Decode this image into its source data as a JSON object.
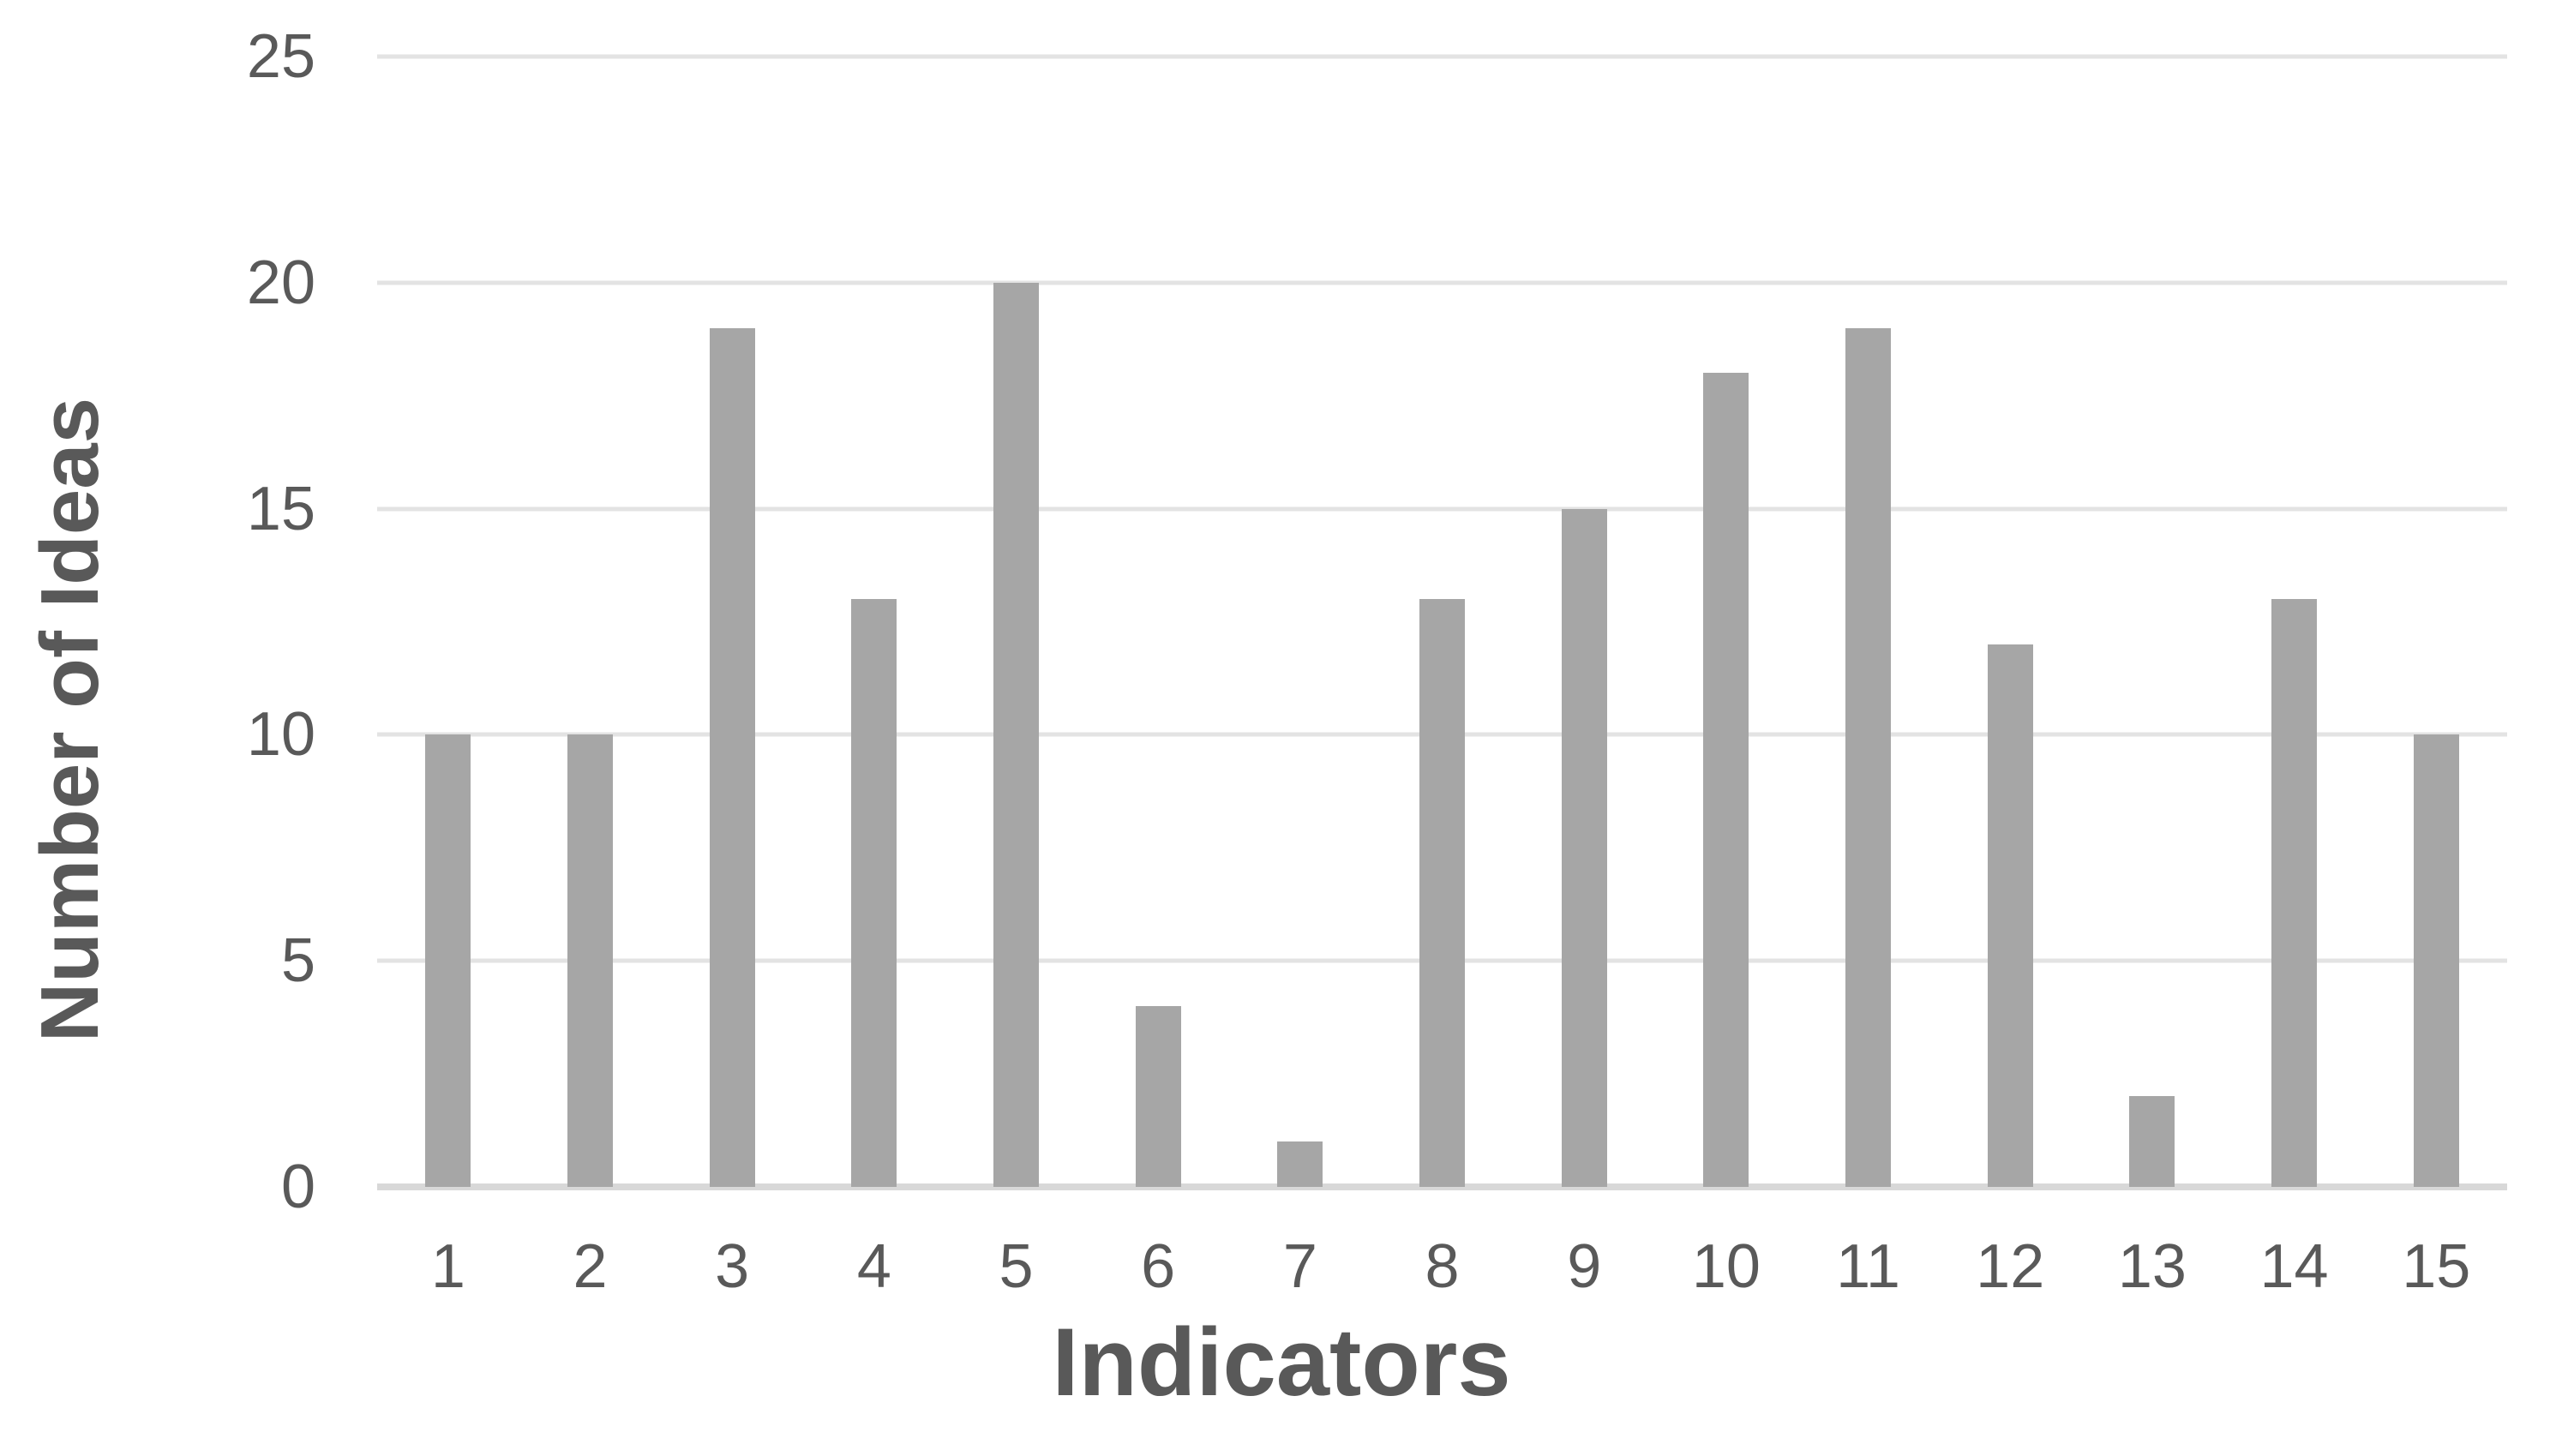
{
  "chart_data": {
    "type": "bar",
    "title": "",
    "xlabel": "Indicators",
    "ylabel": "Number of Ideas",
    "categories": [
      "1",
      "2",
      "3",
      "4",
      "5",
      "6",
      "7",
      "8",
      "9",
      "10",
      "11",
      "12",
      "13",
      "14",
      "15"
    ],
    "values": [
      10,
      10,
      19,
      13,
      20,
      4,
      1,
      13,
      15,
      18,
      19,
      12,
      2,
      13,
      10
    ],
    "series": [
      {
        "name": "Number of Ideas",
        "values": [
          10,
          10,
          19,
          13,
          20,
          4,
          1,
          13,
          15,
          18,
          19,
          12,
          2,
          13,
          10
        ]
      }
    ],
    "ylim": [
      0,
      25
    ],
    "yticks": [
      0,
      5,
      10,
      15,
      20,
      25
    ],
    "grid": true,
    "legend": false,
    "colors": {
      "bar": "#a6a6a6",
      "gridline": "#e3e3e3",
      "axis_baseline": "#d8d8d8",
      "tick_label": "#595959",
      "axis_title": "#595959",
      "background": "#ffffff"
    }
  }
}
